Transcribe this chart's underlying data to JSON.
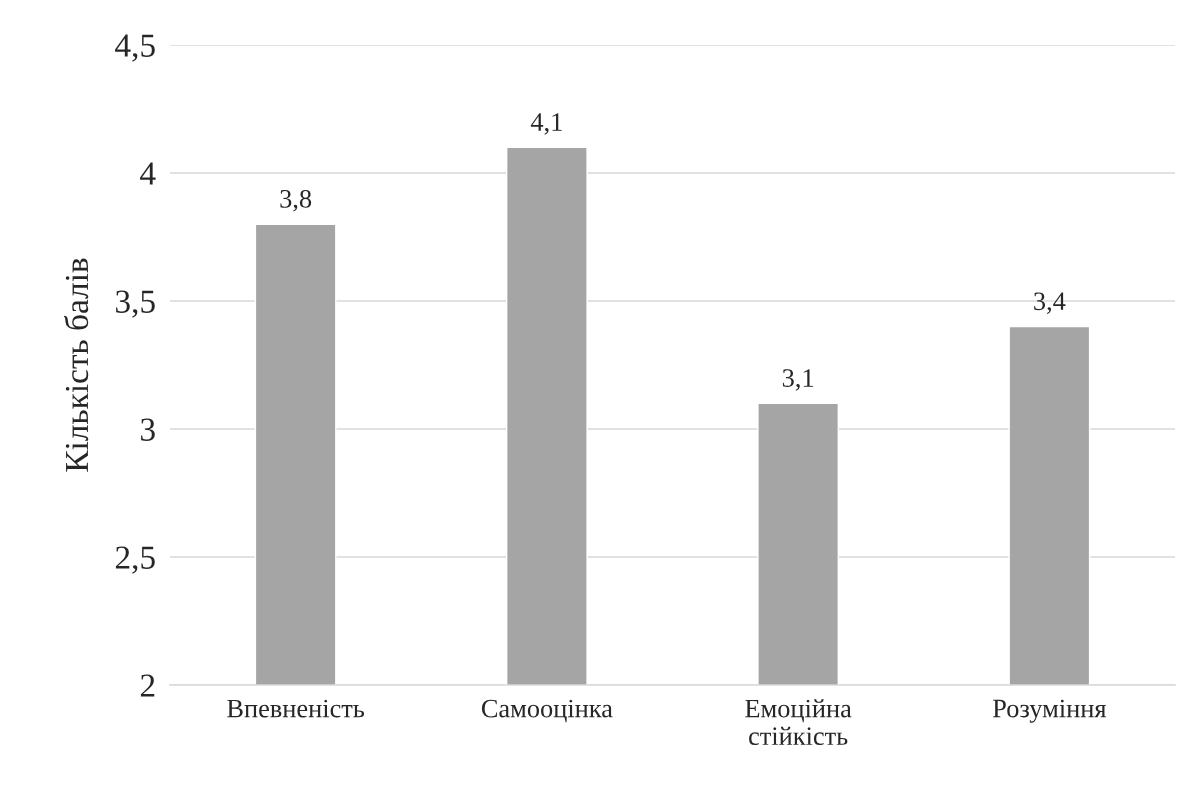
{
  "chart_data": {
    "type": "bar",
    "ylabel": "Кількість балів",
    "categories": [
      "Впевненість",
      "Самооцінка",
      "Емоційна\nстійкість",
      "Розуміння"
    ],
    "values": [
      3.8,
      4.1,
      3.1,
      3.4
    ],
    "color": "#a5a5a5",
    "value_labels": [
      "3,8",
      "4,1",
      "3,1",
      "3,4"
    ],
    "ylim": [
      2,
      4.5
    ],
    "yticks": [
      2,
      {
        "value": 2.5,
        "label": "2,5"
      },
      3,
      {
        "value": 3.5,
        "label": "3,5"
      },
      4,
      {
        "value": 4.5,
        "label": "4,5"
      }
    ],
    "grid": "y"
  }
}
